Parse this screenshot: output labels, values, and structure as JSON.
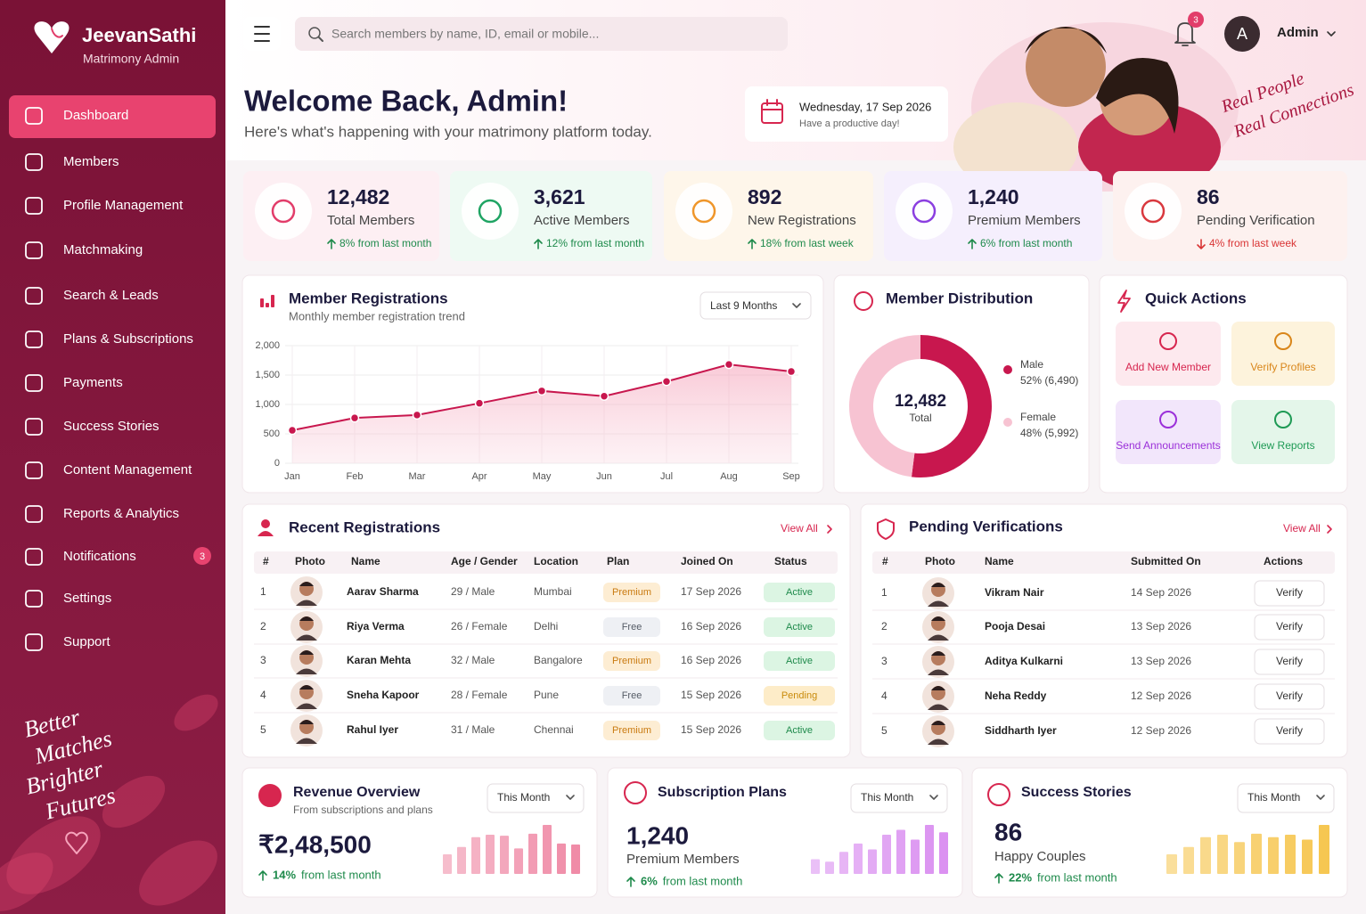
{
  "brand": {
    "name": "JeevanSathi",
    "subtitle": "Matrimony Admin"
  },
  "nav": [
    {
      "label": "Dashboard"
    },
    {
      "label": "Members"
    },
    {
      "label": "Profile Management"
    },
    {
      "label": "Matchmaking"
    },
    {
      "label": "Search & Leads"
    },
    {
      "label": "Plans & Subscriptions"
    },
    {
      "label": "Payments"
    },
    {
      "label": "Success Stories"
    },
    {
      "label": "Content Management"
    },
    {
      "label": "Reports & Analytics"
    },
    {
      "label": "Notifications",
      "badge": "3"
    },
    {
      "label": "Settings"
    },
    {
      "label": "Support"
    }
  ],
  "tagline": [
    "Better",
    "Matches",
    "Brighter",
    "Futures"
  ],
  "search_placeholder": "Search members by name, ID, email or mobile...",
  "notification_count": "3",
  "user": {
    "initial": "A",
    "name": "Admin"
  },
  "welcome": {
    "title": "Welcome Back, Admin!",
    "subtitle": "Here's what's happening with your matrimony platform today.",
    "date": "Wednesday, 17 Sep 2026",
    "date_note": "Have a productive day!",
    "banner_text": [
      "Real People",
      "Real Connections"
    ]
  },
  "stats": [
    {
      "value": "12,482",
      "label": "Total Members",
      "change": "8% from last month",
      "trend": "up",
      "color": "#e23d6a",
      "bg": "#fdeff3"
    },
    {
      "value": "3,621",
      "label": "Active Members",
      "change": "12% from last month",
      "trend": "up",
      "color": "#1fa463",
      "bg": "#eefaf3"
    },
    {
      "value": "892",
      "label": "New Registrations",
      "change": "18% from last week",
      "trend": "up",
      "color": "#ef962a",
      "bg": "#fef6ea"
    },
    {
      "value": "1,240",
      "label": "Premium Members",
      "change": "6% from last month",
      "trend": "up",
      "color": "#8b3fe0",
      "bg": "#f5effd"
    },
    {
      "value": "86",
      "label": "Pending Verification",
      "change": "4% from last week",
      "trend": "down",
      "color": "#d9383e",
      "bg": "#fdf1ef"
    }
  ],
  "registrations_chart": {
    "type": "line",
    "title": "Member Registrations",
    "subtitle": "Monthly member registration trend",
    "period": "Last 9 Months",
    "categories": [
      "Jan",
      "Feb",
      "Mar",
      "Apr",
      "May",
      "Jun",
      "Jul",
      "Aug",
      "Sep"
    ],
    "values": [
      560,
      770,
      820,
      1020,
      1230,
      1140,
      1390,
      1680,
      1560
    ],
    "ylim": [
      0,
      2000
    ],
    "yticks": [
      0,
      500,
      {
        "value": 1000,
        "label": "1,000"
      },
      {
        "value": 1500,
        "label": "1,500"
      },
      {
        "value": 2000,
        "label": "2,000"
      }
    ],
    "color": "#c8174e",
    "grid": true
  },
  "distribution_chart": {
    "type": "donut",
    "title": "Member Distribution",
    "center_value": "12,482",
    "center_label": "Total",
    "categories": [
      "Male",
      "Female"
    ],
    "values": [
      52,
      48
    ],
    "value_labels": [
      "52% (6,490)",
      "48% (5,992)"
    ],
    "colors": [
      "#c8174e",
      "#f7c3d2"
    ]
  },
  "quick_actions": {
    "title": "Quick Actions",
    "items": [
      {
        "label": "Add New Member",
        "color": "#d7264f",
        "bg": "#fde9ee"
      },
      {
        "label": "Verify Profiles",
        "color": "#d9861a",
        "bg": "#fdf3dc"
      },
      {
        "label": "Send Announcements",
        "color": "#9b30d9",
        "bg": "#f2e6fb"
      },
      {
        "label": "View Reports",
        "color": "#1e9a55",
        "bg": "#e4f6ea"
      }
    ]
  },
  "pill_styles": {
    "Premium": {
      "bg": "#fdedd3",
      "fg": "#c97a10"
    },
    "Free": {
      "bg": "#eef0f4",
      "fg": "#555b66"
    },
    "Active": {
      "bg": "#dcf5e3",
      "fg": "#1e8a4b"
    },
    "Pending": {
      "bg": "#fdecc8",
      "fg": "#c98a0a"
    }
  },
  "recent": {
    "title": "Recent Registrations",
    "view_all": "View All",
    "columns": [
      "#",
      "Photo",
      "Name",
      "Age / Gender",
      "Location",
      "Plan",
      "Joined On",
      "Status"
    ],
    "rows": [
      [
        "1",
        "Aarav Sharma",
        "29 / Male",
        "Mumbai",
        "Premium",
        "17 Sep 2026",
        "Active"
      ],
      [
        "2",
        "Riya Verma",
        "26 / Female",
        "Delhi",
        "Free",
        "16 Sep 2026",
        "Active"
      ],
      [
        "3",
        "Karan Mehta",
        "32 / Male",
        "Bangalore",
        "Premium",
        "16 Sep 2026",
        "Active"
      ],
      [
        "4",
        "Sneha Kapoor",
        "28 / Female",
        "Pune",
        "Free",
        "15 Sep 2026",
        "Pending"
      ],
      [
        "5",
        "Rahul Iyer",
        "31 / Male",
        "Chennai",
        "Premium",
        "15 Sep 2026",
        "Active"
      ]
    ]
  },
  "pending": {
    "title": "Pending Verifications",
    "view_all": "View All",
    "columns": [
      "#",
      "Photo",
      "Name",
      "Submitted On",
      "Actions"
    ],
    "action": "Verify",
    "rows": [
      [
        "1",
        "Vikram Nair",
        "14 Sep 2026"
      ],
      [
        "2",
        "Pooja Desai",
        "13 Sep 2026"
      ],
      [
        "3",
        "Aditya Kulkarni",
        "13 Sep 2026"
      ],
      [
        "4",
        "Neha Reddy",
        "12 Sep 2026"
      ],
      [
        "5",
        "Siddharth Iyer",
        "12 Sep 2026"
      ]
    ]
  },
  "bottom_cards": [
    {
      "title": "Revenue Overview",
      "subtitle": "From subscriptions and plans",
      "period": "This Month",
      "value": "₹2,48,500",
      "change": "14%",
      "change_note": "from last month",
      "color": "#ef86a3",
      "bars": [
        40,
        55,
        75,
        80,
        78,
        52,
        82,
        100,
        62,
        60
      ]
    },
    {
      "title": "Subscription Plans",
      "period": "This Month",
      "value": "1,240",
      "label": "Premium Members",
      "change": "6%",
      "change_note": "from last month",
      "color": "#d98cf0",
      "bars": [
        30,
        25,
        45,
        62,
        50,
        80,
        90,
        70,
        100,
        85
      ]
    },
    {
      "title": "Success Stories",
      "period": "This Month",
      "value": "86",
      "label": "Happy Couples",
      "change": "22%",
      "change_note": "from last month",
      "color": "#f6c44a",
      "bars": [
        40,
        55,
        75,
        80,
        65,
        82,
        75,
        80,
        70,
        100
      ]
    }
  ]
}
